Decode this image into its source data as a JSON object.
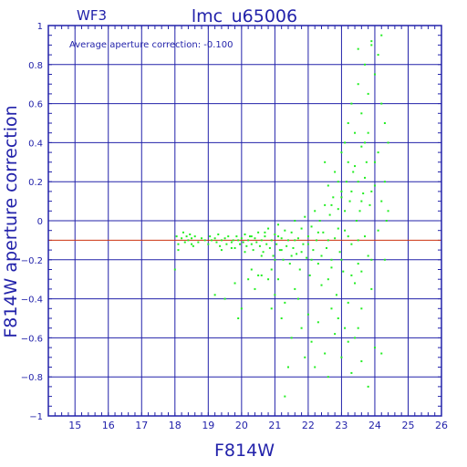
{
  "chart_data": {
    "type": "scatter",
    "panel_label": "WF3",
    "title": "lmc_u65006",
    "annotation": "Average aperture correction: -0.100",
    "xlabel": "F814W",
    "ylabel": "F814W aperture correction",
    "xlim": [
      14.2,
      26
    ],
    "ylim": [
      -1,
      1
    ],
    "x_ticks": [
      15,
      16,
      17,
      18,
      19,
      20,
      21,
      22,
      23,
      24,
      25,
      26
    ],
    "y_ticks": [
      -1,
      -0.8,
      -0.6,
      -0.4,
      -0.2,
      0,
      0.2,
      0.4,
      0.6,
      0.8,
      1
    ],
    "y_tick_labels": [
      "−1",
      "−0.8",
      "−0.6",
      "−0.4",
      "−0.2",
      "0",
      "0.2",
      "0.4",
      "0.6",
      "0.8",
      "1"
    ],
    "grid": true,
    "reference_line": {
      "y": -0.1,
      "color": "#cc3311"
    },
    "colors": {
      "axes": "#2222aa",
      "grid": "#2222aa",
      "points": "#22ee22",
      "reference": "#cc3311"
    },
    "series": [
      {
        "points": [
          [
            18.05,
            -0.08
          ],
          [
            18.1,
            -0.12
          ],
          [
            18.2,
            -0.09
          ],
          [
            18.25,
            -0.06
          ],
          [
            18.3,
            -0.11
          ],
          [
            18.35,
            -0.08
          ],
          [
            18.4,
            -0.1
          ],
          [
            18.45,
            -0.07
          ],
          [
            18.5,
            -0.09
          ],
          [
            18.55,
            -0.13
          ],
          [
            18.6,
            -0.08
          ],
          [
            18.7,
            -0.11
          ],
          [
            18.8,
            -0.09
          ],
          [
            18.9,
            -0.1
          ],
          [
            19.0,
            -0.12
          ],
          [
            19.05,
            -0.08
          ],
          [
            19.1,
            -0.1
          ],
          [
            19.2,
            -0.09
          ],
          [
            19.25,
            -0.11
          ],
          [
            19.3,
            -0.07
          ],
          [
            19.35,
            -0.13
          ],
          [
            19.4,
            -0.1
          ],
          [
            19.5,
            -0.09
          ],
          [
            19.55,
            -0.12
          ],
          [
            19.6,
            -0.08
          ],
          [
            19.7,
            -0.11
          ],
          [
            19.75,
            -0.1
          ],
          [
            19.8,
            -0.14
          ],
          [
            19.85,
            -0.08
          ],
          [
            19.9,
            -0.1
          ],
          [
            19.95,
            -0.12
          ],
          [
            20.0,
            -0.09
          ],
          [
            20.05,
            -0.11
          ],
          [
            20.1,
            -0.07
          ],
          [
            20.15,
            -0.13
          ],
          [
            20.2,
            -0.1
          ],
          [
            20.25,
            -0.08
          ],
          [
            20.3,
            -0.12
          ],
          [
            20.35,
            -0.15
          ],
          [
            20.4,
            -0.09
          ],
          [
            20.45,
            -0.11
          ],
          [
            20.5,
            -0.06
          ],
          [
            20.55,
            -0.13
          ],
          [
            20.6,
            -0.1
          ],
          [
            20.65,
            -0.16
          ],
          [
            20.7,
            -0.08
          ],
          [
            20.75,
            -0.12
          ],
          [
            20.8,
            -0.04
          ],
          [
            20.85,
            -0.14
          ],
          [
            20.9,
            -0.1
          ],
          [
            20.95,
            -0.18
          ],
          [
            21.0,
            -0.07
          ],
          [
            21.05,
            -0.12
          ],
          [
            21.1,
            -0.02
          ],
          [
            21.15,
            -0.15
          ],
          [
            21.2,
            -0.09
          ],
          [
            21.25,
            -0.2
          ],
          [
            21.3,
            -0.05
          ],
          [
            21.35,
            -0.13
          ],
          [
            21.4,
            -0.1
          ],
          [
            21.45,
            -0.22
          ],
          [
            21.5,
            -0.06
          ],
          [
            21.55,
            -0.14
          ],
          [
            21.6,
            0.0
          ],
          [
            21.65,
            -0.17
          ],
          [
            21.7,
            -0.09
          ],
          [
            21.75,
            -0.25
          ],
          [
            21.8,
            -0.04
          ],
          [
            21.85,
            -0.12
          ],
          [
            21.9,
            0.02
          ],
          [
            21.95,
            -0.19
          ],
          [
            22.0,
            -0.08
          ],
          [
            22.05,
            -0.28
          ],
          [
            22.1,
            -0.03
          ],
          [
            22.15,
            -0.15
          ],
          [
            22.2,
            0.05
          ],
          [
            22.25,
            -0.1
          ],
          [
            22.3,
            -0.22
          ],
          [
            22.35,
            0.0
          ],
          [
            22.4,
            -0.33
          ],
          [
            22.45,
            -0.06
          ],
          [
            22.5,
            0.08
          ],
          [
            22.55,
            -0.14
          ],
          [
            22.6,
            -0.3
          ],
          [
            22.65,
            0.03
          ],
          [
            22.7,
            -0.2
          ],
          [
            22.75,
            0.12
          ],
          [
            22.8,
            -0.09
          ],
          [
            22.85,
            -0.38
          ],
          [
            22.9,
            0.06
          ],
          [
            22.95,
            -0.16
          ],
          [
            23.0,
            0.15
          ],
          [
            23.05,
            -0.26
          ],
          [
            23.1,
            -0.05
          ],
          [
            23.15,
            0.2
          ],
          [
            23.2,
            -0.42
          ],
          [
            23.25,
            0.1
          ],
          [
            23.3,
            -0.12
          ],
          [
            23.35,
            0.25
          ],
          [
            23.4,
            -0.32
          ],
          [
            23.45,
            0.0
          ],
          [
            23.5,
            -0.22
          ],
          [
            23.55,
            0.05
          ],
          [
            23.6,
            -0.45
          ],
          [
            23.65,
            0.14
          ],
          [
            23.7,
            -0.08
          ],
          [
            23.75,
            0.3
          ],
          [
            23.8,
            -0.18
          ],
          [
            23.85,
            0.08
          ],
          [
            23.9,
            -0.35
          ],
          [
            24.0,
            0.18
          ],
          [
            24.1,
            -0.05
          ],
          [
            24.2,
            0.1
          ],
          [
            24.3,
            -0.2
          ],
          [
            24.35,
            0.0
          ],
          [
            24.4,
            0.05
          ],
          [
            20.2,
            -0.3
          ],
          [
            20.4,
            -0.35
          ],
          [
            20.6,
            -0.28
          ],
          [
            20.9,
            -0.45
          ],
          [
            21.0,
            -0.38
          ],
          [
            21.2,
            -0.5
          ],
          [
            21.3,
            -0.42
          ],
          [
            21.5,
            -0.6
          ],
          [
            21.6,
            -0.35
          ],
          [
            21.8,
            -0.55
          ],
          [
            21.9,
            -0.7
          ],
          [
            22.0,
            -0.48
          ],
          [
            22.1,
            -0.62
          ],
          [
            22.2,
            -0.75
          ],
          [
            22.3,
            -0.52
          ],
          [
            22.5,
            -0.68
          ],
          [
            22.6,
            -0.8
          ],
          [
            22.8,
            -0.58
          ],
          [
            23.0,
            -0.7
          ],
          [
            23.2,
            -0.62
          ],
          [
            23.3,
            -0.78
          ],
          [
            23.5,
            -0.55
          ],
          [
            23.6,
            -0.72
          ],
          [
            23.8,
            -0.85
          ],
          [
            24.0,
            -0.65
          ],
          [
            24.2,
            -0.68
          ],
          [
            21.4,
            -0.75
          ],
          [
            21.3,
            -0.9
          ],
          [
            22.9,
            -0.5
          ],
          [
            21.7,
            -0.4
          ],
          [
            20.9,
            -0.25
          ],
          [
            21.1,
            -0.3
          ],
          [
            22.7,
            -0.45
          ],
          [
            23.4,
            -0.6
          ],
          [
            23.1,
            -0.55
          ],
          [
            19.5,
            -0.4
          ],
          [
            19.8,
            -0.32
          ],
          [
            20.0,
            -0.45
          ],
          [
            20.5,
            -0.28
          ],
          [
            20.8,
            -0.3
          ],
          [
            19.2,
            -0.38
          ],
          [
            20.3,
            -0.25
          ],
          [
            19.9,
            -0.5
          ],
          [
            22.8,
            0.25
          ],
          [
            23.0,
            0.35
          ],
          [
            23.1,
            0.4
          ],
          [
            23.2,
            0.5
          ],
          [
            23.3,
            0.6
          ],
          [
            23.4,
            0.45
          ],
          [
            23.5,
            0.7
          ],
          [
            23.6,
            0.55
          ],
          [
            23.7,
            0.8
          ],
          [
            23.8,
            0.65
          ],
          [
            23.9,
            0.9
          ],
          [
            24.0,
            0.75
          ],
          [
            24.1,
            0.85
          ],
          [
            24.2,
            0.6
          ],
          [
            24.3,
            0.5
          ],
          [
            23.2,
            0.3
          ],
          [
            23.4,
            0.28
          ],
          [
            23.6,
            0.38
          ],
          [
            23.8,
            0.45
          ],
          [
            24.0,
            0.3
          ],
          [
            22.5,
            0.3
          ],
          [
            22.9,
            0.2
          ],
          [
            23.3,
            0.15
          ],
          [
            23.7,
            0.22
          ],
          [
            24.1,
            0.35
          ],
          [
            24.2,
            0.95
          ],
          [
            23.9,
            0.92
          ],
          [
            23.5,
            0.88
          ],
          [
            23.7,
            0.4
          ],
          [
            24.4,
            0.4
          ],
          [
            22.6,
            0.18
          ],
          [
            23.0,
            0.12
          ],
          [
            23.5,
            0.2
          ],
          [
            23.9,
            0.15
          ],
          [
            24.3,
            0.2
          ],
          [
            22.7,
            0.08
          ],
          [
            23.1,
            0.05
          ],
          [
            23.6,
            0.1
          ],
          [
            18.1,
            -0.15
          ],
          [
            18.5,
            -0.12
          ],
          [
            18.0,
            -0.25
          ],
          [
            19.4,
            -0.15
          ],
          [
            19.7,
            -0.14
          ],
          [
            20.1,
            -0.16
          ],
          [
            20.6,
            -0.18
          ],
          [
            21.0,
            -0.2
          ],
          [
            21.2,
            -0.15
          ],
          [
            21.5,
            -0.18
          ],
          [
            21.8,
            -0.16
          ],
          [
            22.1,
            -0.2
          ],
          [
            22.4,
            -0.18
          ],
          [
            22.7,
            -0.24
          ],
          [
            23.0,
            -0.2
          ],
          [
            23.3,
            -0.28
          ],
          [
            23.6,
            -0.26
          ],
          [
            23.9,
            -0.2
          ],
          [
            20.3,
            -0.08
          ],
          [
            20.7,
            -0.06
          ],
          [
            21.1,
            -0.08
          ],
          [
            21.6,
            -0.1
          ],
          [
            22.0,
            -0.12
          ],
          [
            22.3,
            -0.06
          ],
          [
            22.6,
            -0.1
          ],
          [
            22.9,
            -0.04
          ],
          [
            23.2,
            -0.08
          ],
          [
            23.5,
            -0.1
          ]
        ]
      }
    ]
  }
}
